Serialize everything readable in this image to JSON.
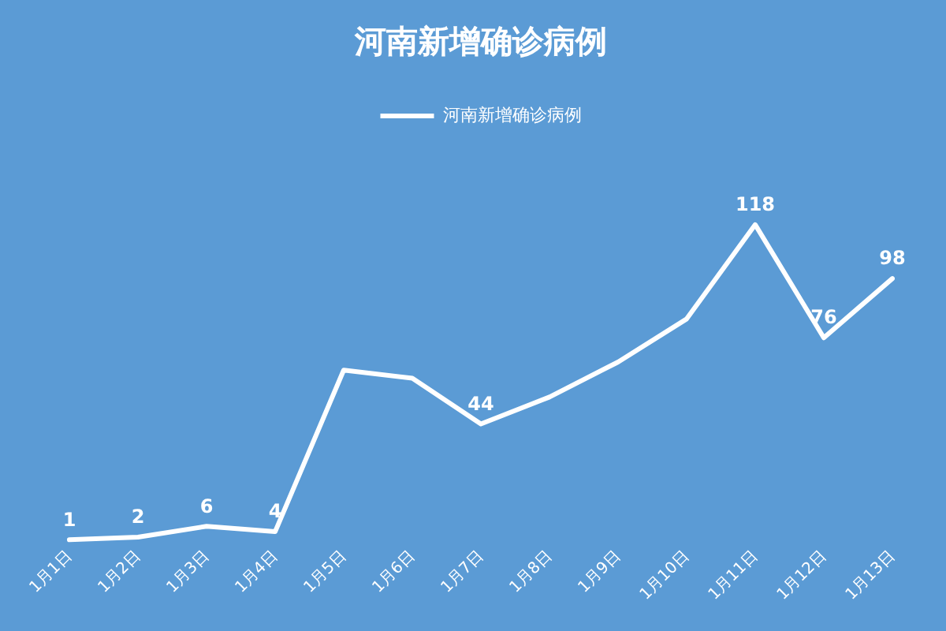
{
  "chart_data": {
    "type": "line",
    "title": "河南新增确诊病例",
    "categories": [
      "1月1日",
      "1月2日",
      "1月3日",
      "1月4日",
      "1月5日",
      "1月6日",
      "1月7日",
      "1月8日",
      "1月9日",
      "1月10日",
      "1月11日",
      "1月12日",
      "1月13日"
    ],
    "series": [
      {
        "name": "河南新增确诊病例",
        "color": "#ffffff",
        "values": [
          1,
          2,
          6,
          4,
          64,
          61,
          44,
          54,
          67,
          83,
          118,
          76,
          98
        ],
        "value_labels": [
          "1",
          "2",
          "6",
          "4",
          null,
          null,
          "44",
          null,
          null,
          null,
          "118",
          "76",
          "98"
        ]
      }
    ],
    "legend": "top",
    "marker": "none",
    "line_style": "solid",
    "tick_labels": "x"
  }
}
